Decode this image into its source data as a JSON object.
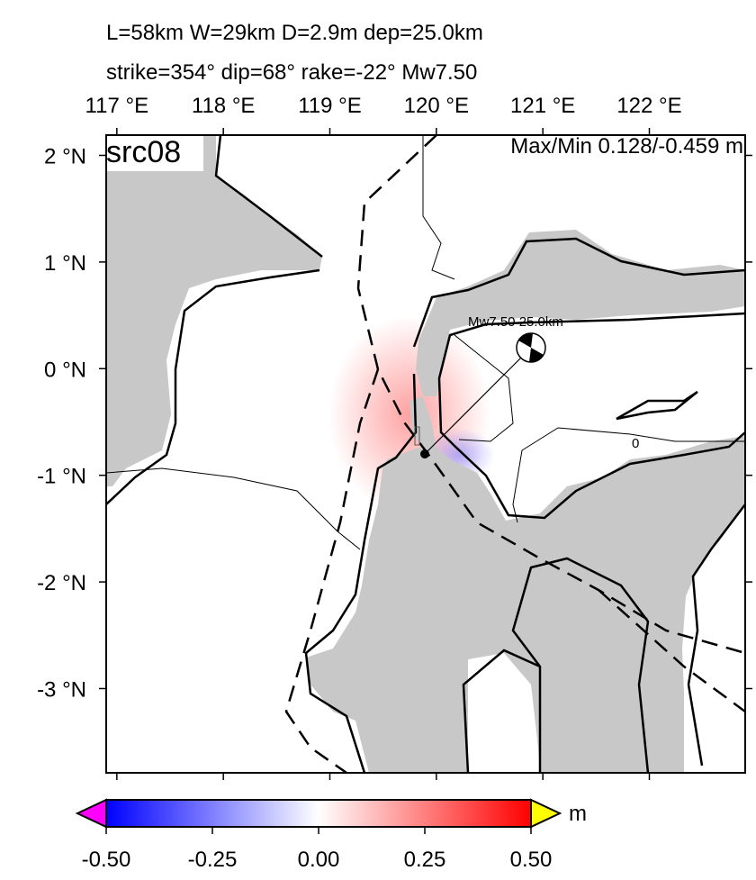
{
  "header": {
    "line1": "L=58km W=29km D=2.9m dep=25.0km",
    "line2": "strike=354° dip=68° rake=-22° Mw7.50"
  },
  "map": {
    "label": "src08",
    "maxmin": "Max/Min 0.128/-0.459 m",
    "lonlim": [
      116.9,
      122.9
    ],
    "latlim": [
      -3.79,
      2.19
    ],
    "lon_ticks": [
      {
        "value": 117,
        "label": "117 °E"
      },
      {
        "value": 118,
        "label": "118 °E"
      },
      {
        "value": 119,
        "label": "119 °E"
      },
      {
        "value": 120,
        "label": "120 °E"
      },
      {
        "value": 121,
        "label": "121 °E"
      },
      {
        "value": 122,
        "label": "122 °E"
      }
    ],
    "lat_ticks": [
      {
        "value": 2,
        "label": "2 °N"
      },
      {
        "value": 1,
        "label": "1 °N"
      },
      {
        "value": 0,
        "label": "0 °N"
      },
      {
        "value": -1,
        "label": "-1 °N"
      },
      {
        "value": -2,
        "label": "-2 °N"
      },
      {
        "value": -3,
        "label": "-3 °N"
      }
    ],
    "source_label": "Mw7.50 25.0km",
    "contour_label": "0"
  },
  "colorbar": {
    "unit": "m",
    "range": [
      -0.5,
      0.5
    ],
    "ticks": [
      {
        "value": -0.5,
        "label": "-0.50"
      },
      {
        "value": -0.25,
        "label": "-0.25"
      },
      {
        "value": 0,
        "label": "0.00"
      },
      {
        "value": 0.25,
        "label": "0.25"
      },
      {
        "value": 0.5,
        "label": "0.50"
      }
    ]
  }
}
